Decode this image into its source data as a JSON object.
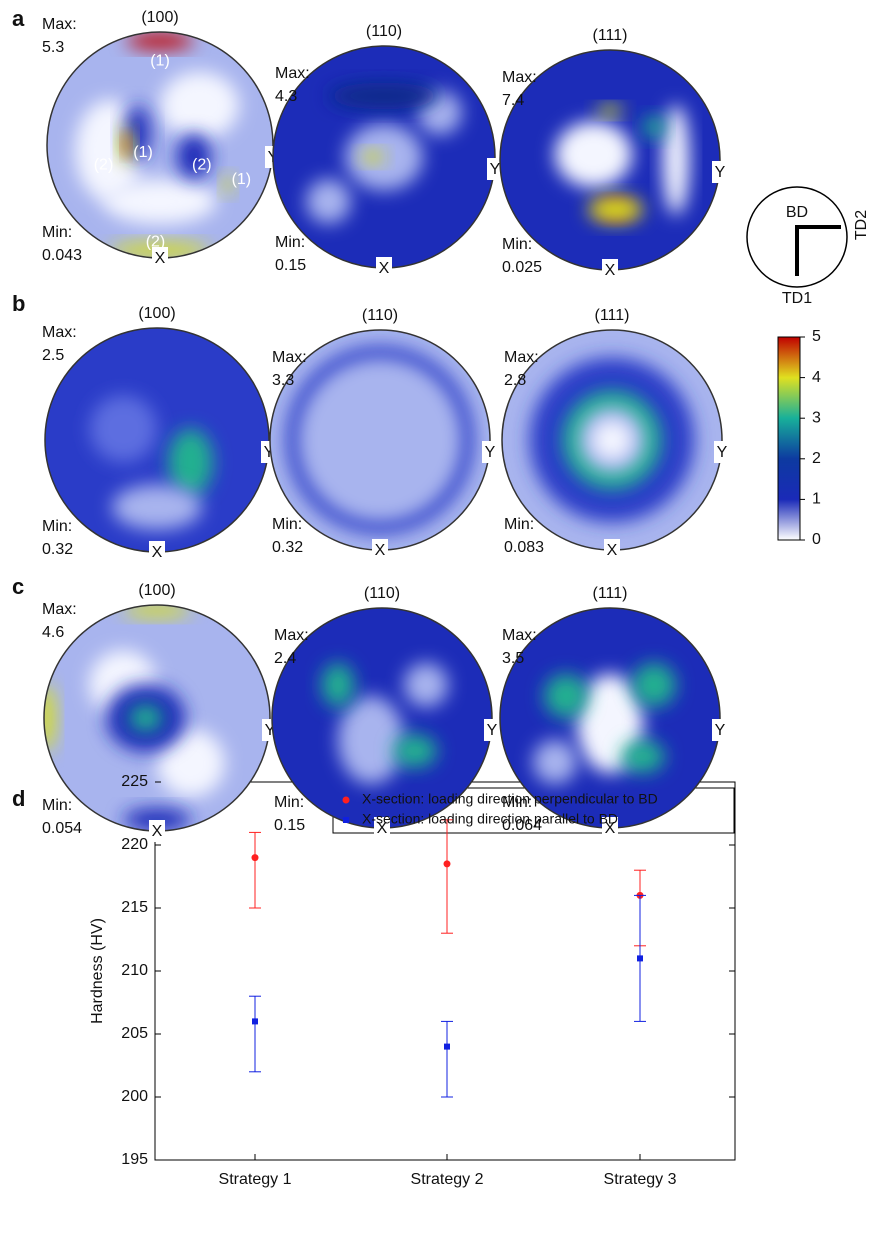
{
  "panels": [
    {
      "label": "a",
      "figures": [
        {
          "title": "(100)",
          "max": 5.3,
          "min": 0.043,
          "annotations": [
            "(1)",
            "(2)",
            "(1)",
            "(2)",
            "(1)",
            "(2)"
          ]
        },
        {
          "title": "(110)",
          "max": 4.3,
          "min": 0.15
        },
        {
          "title": "(111)",
          "max": 7.4,
          "min": 0.025
        }
      ]
    },
    {
      "label": "b",
      "figures": [
        {
          "title": "(100)",
          "max": 2.5,
          "min": 0.32
        },
        {
          "title": "(110)",
          "max": 3.3,
          "min": 0.32
        },
        {
          "title": "(111)",
          "max": 2.8,
          "min": 0.083
        }
      ]
    },
    {
      "label": "c",
      "figures": [
        {
          "title": "(100)",
          "max": 4.6,
          "min": 0.054
        },
        {
          "title": "(110)",
          "max": 2.4,
          "min": 0.15
        },
        {
          "title": "(111)",
          "max": 3.5,
          "min": 0.064
        }
      ]
    }
  ],
  "max_label": "Max:",
  "min_label": "Min:",
  "x_axis": "X",
  "y_axis": "Y",
  "reference": {
    "center": "BD",
    "down": "TD1",
    "right": "TD2"
  },
  "colorbar": {
    "lim": [
      0,
      5
    ],
    "ticks": [
      0,
      1,
      2,
      3,
      4,
      5
    ]
  },
  "chart_label": "d",
  "chart_data": {
    "type": "errorbar",
    "y_label": "Hardness (HV)",
    "categories": [
      "Strategy 1",
      "Strategy 2",
      "Strategy 3"
    ],
    "ylim": [
      195,
      225
    ],
    "yticks": [
      195,
      200,
      205,
      210,
      215,
      220,
      225
    ],
    "series": [
      {
        "name": "X-section: loading direction perpendicular to BD",
        "color": "#ff2020",
        "marker": "circle",
        "values": [
          219,
          218.5,
          216
        ],
        "low": [
          215,
          213,
          212
        ],
        "high": [
          221,
          222,
          218
        ]
      },
      {
        "name": "X-section: loading direction parallel to BD",
        "color": "#1020e0",
        "marker": "square",
        "values": [
          206,
          204,
          211
        ],
        "low": [
          202,
          200,
          206
        ],
        "high": [
          208,
          206,
          216
        ]
      }
    ]
  }
}
